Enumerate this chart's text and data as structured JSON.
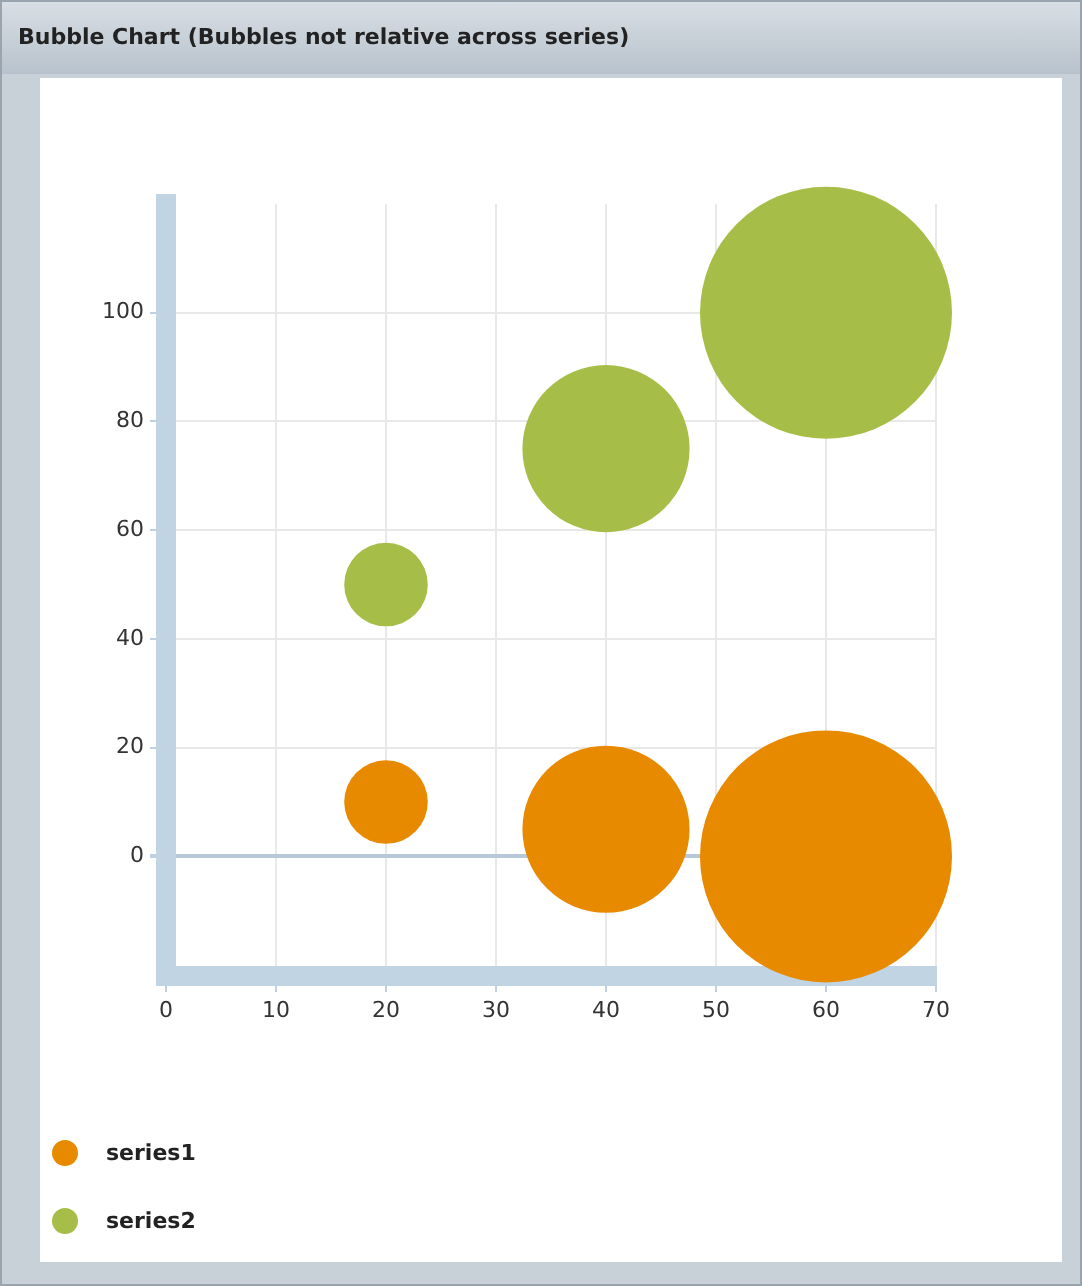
{
  "chart_data": {
    "type": "bubble",
    "title": "Bubble Chart (Bubbles not relative across series)",
    "xlim": [
      0,
      70
    ],
    "xticks": [
      0,
      10,
      20,
      30,
      40,
      50,
      60,
      70
    ],
    "ylim": [
      -22,
      120
    ],
    "yticks": [
      0,
      20,
      40,
      60,
      80,
      100
    ],
    "grid": true,
    "legend": "bottom left",
    "series": [
      {
        "name": "series1",
        "color": "#e88a00",
        "x": [
          20,
          40,
          60
        ],
        "values": [
          10,
          5,
          0
        ],
        "sizes": [
          0.11,
          0.44,
          1
        ]
      },
      {
        "name": "series2",
        "color": "#a6be47",
        "x": [
          20,
          40,
          60
        ],
        "values": [
          50,
          75,
          100
        ],
        "sizes": [
          0.11,
          0.44,
          1
        ]
      }
    ]
  }
}
